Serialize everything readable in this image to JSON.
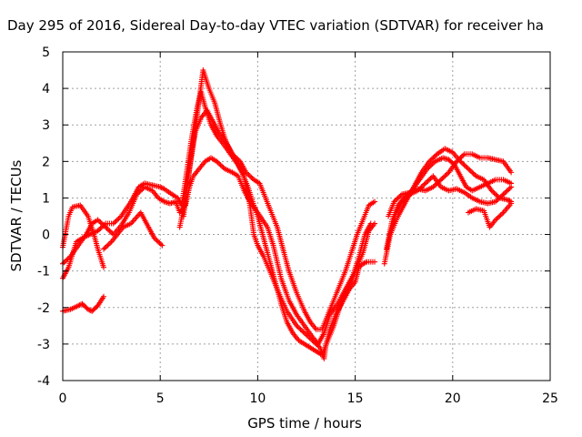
{
  "chart_data": {
    "type": "scatter",
    "title": "Day 295 of 2016, Sidereal Day-to-day VTEC variation (SDTVAR) for receiver ha",
    "xlabel": "GPS time / hours",
    "ylabel": "SDTVAR / TECUs",
    "xlim": [
      0,
      25
    ],
    "ylim": [
      -4,
      5
    ],
    "xticks": [
      "0",
      "5",
      "10",
      "15",
      "20",
      "25"
    ],
    "yticks": [
      "-4",
      "-3",
      "-2",
      "-1",
      "0",
      "1",
      "2",
      "3",
      "4",
      "5"
    ],
    "grid": true,
    "marker": "+",
    "color": "#ff0000",
    "series": [
      {
        "points": [
          [
            0.0,
            -2.1
          ],
          [
            0.4,
            -2.05
          ],
          [
            0.8,
            -1.95
          ],
          [
            1.0,
            -1.9
          ],
          [
            1.3,
            -2.05
          ],
          [
            1.5,
            -2.1
          ],
          [
            1.8,
            -1.95
          ],
          [
            2.1,
            -1.7
          ]
        ]
      },
      {
        "points": [
          [
            0.0,
            -0.35
          ],
          [
            0.3,
            0.5
          ],
          [
            0.5,
            0.75
          ],
          [
            0.9,
            0.8
          ],
          [
            1.3,
            0.5
          ],
          [
            1.6,
            0.0
          ],
          [
            1.8,
            -0.4
          ],
          [
            2.1,
            -0.9
          ]
        ]
      },
      {
        "points": [
          [
            0.0,
            -1.2
          ],
          [
            0.3,
            -0.9
          ],
          [
            0.7,
            -0.2
          ],
          [
            1.0,
            -0.1
          ],
          [
            1.4,
            0.0
          ],
          [
            1.8,
            0.1
          ],
          [
            2.2,
            0.3
          ],
          [
            2.6,
            0.3
          ],
          [
            3.0,
            0.5
          ],
          [
            3.5,
            0.9
          ],
          [
            3.9,
            1.3
          ],
          [
            4.2,
            1.4
          ],
          [
            4.6,
            1.35
          ],
          [
            5.0,
            1.3
          ],
          [
            5.2,
            1.25
          ],
          [
            5.6,
            1.1
          ],
          [
            5.9,
            1.0
          ],
          [
            6.1,
            0.8
          ],
          [
            6.3,
            1.5
          ],
          [
            6.6,
            2.6
          ],
          [
            6.9,
            3.5
          ],
          [
            7.1,
            3.9
          ],
          [
            7.3,
            3.5
          ],
          [
            7.6,
            3.0
          ],
          [
            7.9,
            2.7
          ],
          [
            8.2,
            2.5
          ],
          [
            8.6,
            2.2
          ],
          [
            9.0,
            1.9
          ],
          [
            9.3,
            1.6
          ],
          [
            9.6,
            0.8
          ],
          [
            9.8,
            0.0
          ],
          [
            10.0,
            -0.3
          ],
          [
            10.3,
            -0.6
          ],
          [
            10.7,
            -1.1
          ],
          [
            11.0,
            -1.5
          ],
          [
            11.5,
            -2.1
          ],
          [
            12.0,
            -2.5
          ],
          [
            12.4,
            -2.7
          ],
          [
            12.8,
            -2.9
          ],
          [
            13.2,
            -3.1
          ],
          [
            13.4,
            -3.4
          ],
          [
            13.5,
            -3.0
          ],
          [
            13.7,
            -2.6
          ],
          [
            14.0,
            -2.2
          ],
          [
            14.4,
            -1.8
          ],
          [
            14.7,
            -1.5
          ],
          [
            15.0,
            -1.3
          ],
          [
            15.2,
            -0.9
          ],
          [
            15.4,
            -0.8
          ],
          [
            15.6,
            -0.75
          ],
          [
            16.0,
            -0.75
          ]
        ]
      },
      {
        "points": [
          [
            0.0,
            -0.8
          ],
          [
            0.4,
            -0.6
          ],
          [
            0.8,
            -0.3
          ],
          [
            1.2,
            0.0
          ],
          [
            1.5,
            0.3
          ],
          [
            1.8,
            0.4
          ],
          [
            2.2,
            0.2
          ],
          [
            2.6,
            0.0
          ],
          [
            3.0,
            0.25
          ],
          [
            3.4,
            0.6
          ],
          [
            3.8,
            1.1
          ],
          [
            4.2,
            1.3
          ],
          [
            4.6,
            1.2
          ],
          [
            4.9,
            1.0
          ],
          [
            5.2,
            0.9
          ],
          [
            5.5,
            0.85
          ],
          [
            5.8,
            0.9
          ],
          [
            6.0,
            0.6
          ],
          [
            6.3,
            0.8
          ],
          [
            6.5,
            1.3
          ],
          [
            6.7,
            1.6
          ],
          [
            7.0,
            1.8
          ],
          [
            7.3,
            2.0
          ],
          [
            7.6,
            2.1
          ],
          [
            7.9,
            2.0
          ],
          [
            8.3,
            1.8
          ],
          [
            8.7,
            1.7
          ],
          [
            9.0,
            1.6
          ],
          [
            9.3,
            1.2
          ],
          [
            9.6,
            0.9
          ],
          [
            10.0,
            0.6
          ],
          [
            10.5,
            0.2
          ],
          [
            10.8,
            -0.3
          ],
          [
            11.2,
            -1.2
          ],
          [
            11.6,
            -1.8
          ],
          [
            12.0,
            -2.2
          ],
          [
            12.4,
            -2.5
          ],
          [
            12.8,
            -2.8
          ],
          [
            13.1,
            -3.0
          ],
          [
            13.4,
            -2.7
          ],
          [
            13.7,
            -2.2
          ],
          [
            14.1,
            -1.9
          ],
          [
            14.5,
            -1.5
          ],
          [
            14.9,
            -1.1
          ],
          [
            15.2,
            -0.6
          ],
          [
            15.5,
            0.0
          ],
          [
            15.8,
            0.3
          ]
        ]
      },
      {
        "points": [
          [
            2.1,
            -0.4
          ],
          [
            2.5,
            -0.2
          ],
          [
            2.8,
            0.0
          ],
          [
            3.1,
            0.2
          ],
          [
            3.5,
            0.3
          ],
          [
            4.0,
            0.6
          ],
          [
            4.4,
            0.2
          ],
          [
            4.7,
            -0.1
          ],
          [
            5.1,
            -0.3
          ]
        ]
      },
      {
        "points": [
          [
            6.0,
            0.2
          ],
          [
            6.3,
            1.0
          ],
          [
            6.6,
            2.2
          ],
          [
            6.9,
            3.3
          ],
          [
            7.2,
            4.5
          ],
          [
            7.5,
            4.0
          ],
          [
            7.8,
            3.6
          ],
          [
            8.1,
            3.0
          ],
          [
            8.4,
            2.5
          ],
          [
            8.7,
            2.2
          ],
          [
            9.1,
            2.0
          ],
          [
            9.4,
            1.7
          ],
          [
            9.8,
            1.5
          ],
          [
            10.1,
            1.4
          ],
          [
            10.4,
            1.0
          ],
          [
            10.7,
            0.6
          ],
          [
            11.0,
            0.2
          ],
          [
            11.3,
            -0.4
          ],
          [
            11.6,
            -1.0
          ],
          [
            12.0,
            -1.6
          ],
          [
            12.4,
            -2.1
          ],
          [
            12.7,
            -2.4
          ],
          [
            13.0,
            -2.6
          ],
          [
            13.3,
            -2.6
          ],
          [
            13.6,
            -2.2
          ],
          [
            13.9,
            -1.8
          ],
          [
            14.2,
            -1.4
          ],
          [
            14.5,
            -1.0
          ],
          [
            14.8,
            -0.5
          ],
          [
            15.1,
            0.0
          ],
          [
            15.4,
            0.4
          ],
          [
            15.7,
            0.8
          ],
          [
            16.0,
            0.9
          ]
        ]
      },
      {
        "points": [
          [
            6.2,
            0.5
          ],
          [
            6.5,
            1.8
          ],
          [
            6.8,
            2.8
          ],
          [
            7.1,
            3.2
          ],
          [
            7.4,
            3.4
          ],
          [
            7.7,
            3.1
          ],
          [
            8.0,
            2.8
          ],
          [
            8.3,
            2.6
          ],
          [
            8.6,
            2.3
          ],
          [
            8.9,
            2.0
          ],
          [
            9.2,
            1.7
          ],
          [
            9.5,
            1.3
          ],
          [
            9.8,
            0.8
          ],
          [
            10.0,
            0.5
          ],
          [
            10.3,
            -0.1
          ],
          [
            10.6,
            -0.7
          ],
          [
            10.9,
            -1.3
          ],
          [
            11.2,
            -1.9
          ],
          [
            11.5,
            -2.4
          ],
          [
            11.8,
            -2.7
          ],
          [
            12.1,
            -2.9
          ],
          [
            12.4,
            -3.0
          ],
          [
            12.7,
            -3.1
          ],
          [
            13.0,
            -3.2
          ],
          [
            13.3,
            -3.3
          ],
          [
            13.6,
            -2.9
          ],
          [
            13.9,
            -2.5
          ],
          [
            14.2,
            -2.0
          ],
          [
            14.5,
            -1.6
          ],
          [
            14.8,
            -1.3
          ],
          [
            15.1,
            -0.9
          ],
          [
            15.4,
            -0.5
          ],
          [
            15.7,
            0.1
          ],
          [
            16.0,
            0.3
          ]
        ]
      },
      {
        "points": [
          [
            16.5,
            -0.8
          ],
          [
            16.8,
            0.0
          ],
          [
            17.1,
            0.6
          ],
          [
            17.4,
            0.9
          ],
          [
            17.8,
            1.1
          ],
          [
            18.2,
            1.2
          ],
          [
            18.6,
            1.4
          ],
          [
            19.0,
            1.6
          ],
          [
            19.4,
            1.3
          ],
          [
            19.8,
            1.2
          ],
          [
            20.2,
            1.25
          ],
          [
            20.6,
            1.15
          ],
          [
            21.0,
            1.0
          ],
          [
            21.4,
            0.9
          ],
          [
            21.8,
            0.85
          ],
          [
            22.2,
            0.9
          ],
          [
            22.6,
            1.1
          ],
          [
            23.0,
            1.3
          ]
        ]
      },
      {
        "points": [
          [
            16.6,
            -0.4
          ],
          [
            16.9,
            0.4
          ],
          [
            17.2,
            0.8
          ],
          [
            17.5,
            1.0
          ],
          [
            17.9,
            1.2
          ],
          [
            18.3,
            1.5
          ],
          [
            18.7,
            1.8
          ],
          [
            19.1,
            2.0
          ],
          [
            19.5,
            2.1
          ],
          [
            19.8,
            2.05
          ],
          [
            20.1,
            1.9
          ],
          [
            20.4,
            1.6
          ],
          [
            20.7,
            1.3
          ],
          [
            21.0,
            1.2
          ],
          [
            21.4,
            1.3
          ],
          [
            21.8,
            1.4
          ],
          [
            22.2,
            1.5
          ],
          [
            22.6,
            1.5
          ],
          [
            23.0,
            1.4
          ]
        ]
      },
      {
        "points": [
          [
            16.8,
            0.0
          ],
          [
            17.2,
            0.5
          ],
          [
            17.6,
            0.9
          ],
          [
            18.0,
            1.3
          ],
          [
            18.4,
            1.7
          ],
          [
            18.8,
            2.0
          ],
          [
            19.2,
            2.2
          ],
          [
            19.6,
            2.35
          ],
          [
            20.0,
            2.25
          ],
          [
            20.4,
            2.0
          ],
          [
            20.8,
            1.8
          ],
          [
            21.2,
            1.6
          ],
          [
            21.6,
            1.5
          ],
          [
            22.0,
            1.2
          ],
          [
            22.4,
            1.0
          ],
          [
            22.8,
            0.95
          ],
          [
            23.0,
            0.9
          ]
        ]
      },
      {
        "points": [
          [
            16.7,
            0.5
          ],
          [
            17.0,
            0.9
          ],
          [
            17.4,
            1.1
          ],
          [
            17.8,
            1.15
          ],
          [
            18.2,
            1.25
          ],
          [
            18.6,
            1.2
          ],
          [
            19.0,
            1.3
          ],
          [
            19.4,
            1.5
          ],
          [
            19.8,
            1.7
          ],
          [
            20.2,
            2.0
          ],
          [
            20.6,
            2.2
          ],
          [
            21.0,
            2.2
          ],
          [
            21.4,
            2.1
          ],
          [
            21.8,
            2.1
          ],
          [
            22.2,
            2.05
          ],
          [
            22.6,
            2.0
          ],
          [
            23.0,
            1.7
          ]
        ]
      },
      {
        "points": [
          [
            20.8,
            0.6
          ],
          [
            21.2,
            0.7
          ],
          [
            21.6,
            0.65
          ],
          [
            21.9,
            0.2
          ],
          [
            22.2,
            0.4
          ],
          [
            22.6,
            0.6
          ],
          [
            23.0,
            0.85
          ]
        ]
      }
    ]
  }
}
